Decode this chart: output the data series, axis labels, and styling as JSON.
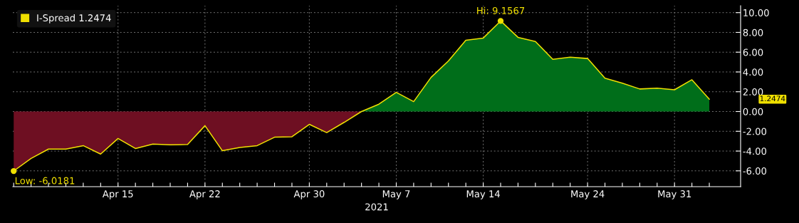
{
  "chart_data": {
    "type": "line",
    "xlabel": "2021",
    "categories": [
      null,
      null,
      null,
      null,
      null,
      null,
      "Apr 15",
      null,
      null,
      null,
      null,
      "Apr 22",
      null,
      null,
      null,
      null,
      null,
      "Apr 30",
      null,
      null,
      null,
      null,
      "May 7",
      null,
      null,
      null,
      null,
      "May 14",
      null,
      null,
      null,
      null,
      null,
      "May 24",
      null,
      null,
      null,
      null,
      "May 31",
      null,
      null
    ],
    "series": [
      {
        "type": "area",
        "color": "#6e0f22",
        "values": [
          -6.0181,
          -4.75,
          -3.8,
          -3.8,
          -3.45,
          -4.3,
          -2.73,
          -3.74,
          -3.3,
          -3.37,
          -3.33,
          -1.43,
          -3.97,
          -3.63,
          -3.45,
          -2.6,
          -2.55,
          -1.3,
          -2.13,
          -1.1,
          0,
          null,
          null,
          null,
          null,
          null,
          null,
          null,
          null,
          null,
          null,
          null,
          null,
          null,
          null,
          null,
          null,
          null,
          null,
          null,
          null
        ]
      },
      {
        "type": "area",
        "color": "#006e1a",
        "values": [
          null,
          null,
          null,
          null,
          null,
          null,
          null,
          null,
          null,
          null,
          null,
          null,
          null,
          null,
          null,
          null,
          null,
          null,
          null,
          null,
          0,
          0.74,
          1.94,
          1.0,
          3.45,
          5.12,
          7.2,
          7.43,
          9.1567,
          7.5,
          7.08,
          5.28,
          5.49,
          5.36,
          3.37,
          2.86,
          2.28,
          2.36,
          2.2,
          3.21,
          1.2474
        ]
      },
      {
        "name": "I-Spread 1.2474",
        "color": "#f0e000",
        "values": [
          -6.0181,
          -4.75,
          -3.8,
          -3.8,
          -3.45,
          -4.3,
          -2.73,
          -3.74,
          -3.3,
          -3.37,
          -3.33,
          -1.43,
          -3.97,
          -3.63,
          -3.45,
          -2.6,
          -2.55,
          -1.3,
          -2.13,
          -1.1,
          0,
          0.74,
          1.94,
          1.0,
          3.45,
          5.12,
          7.2,
          7.43,
          9.1567,
          7.5,
          7.08,
          5.28,
          5.49,
          5.36,
          3.37,
          2.86,
          2.28,
          2.36,
          2.2,
          3.21,
          1.2474
        ]
      }
    ],
    "ylim": [
      -7.6,
      10.7
    ],
    "yticks": [
      {
        "value": -6,
        "label": "-6.00"
      },
      {
        "value": -4,
        "label": "-4.00"
      },
      {
        "value": -2,
        "label": "-2.00"
      },
      {
        "value": 0,
        "label": "0.00"
      },
      {
        "value": 2,
        "label": "2.00"
      },
      {
        "value": 4,
        "label": "4.00"
      },
      {
        "value": 6,
        "label": "6.00"
      },
      {
        "value": 8,
        "label": "8.00"
      },
      {
        "value": 10,
        "label": "10.00"
      }
    ],
    "annotations": [
      {
        "text": "Hi: 9.1567",
        "y": 9.1567
      },
      "Low: -6.0181",
      "1.2474"
    ],
    "grid": true,
    "legend": "top left",
    "marker": "none",
    "line_style": "solid"
  }
}
